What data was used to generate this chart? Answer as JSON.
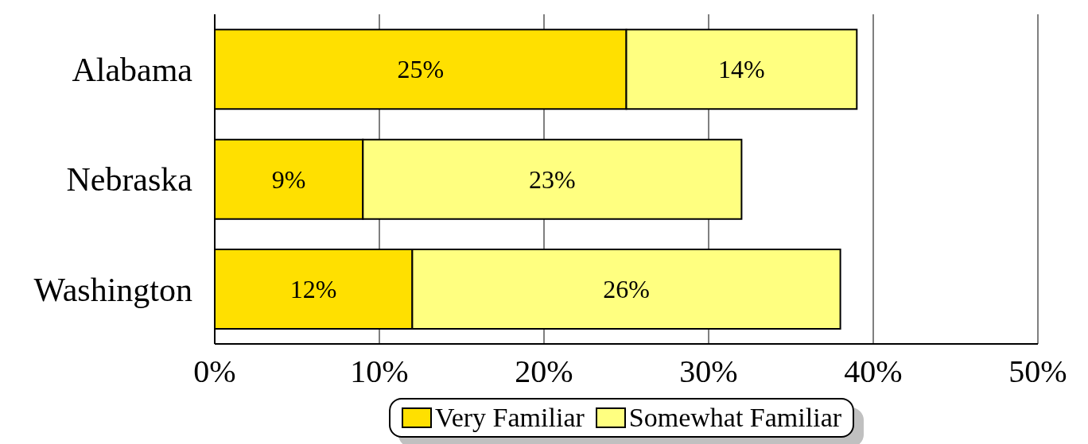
{
  "chart_data": {
    "type": "bar",
    "orientation": "horizontal",
    "stacked": true,
    "categories": [
      "Alabama",
      "Nebraska",
      "Washington"
    ],
    "series": [
      {
        "name": "Very Familiar",
        "color": "#ffe000",
        "values": [
          25,
          9,
          12
        ],
        "value_labels": [
          "25%",
          "9%",
          "12%"
        ]
      },
      {
        "name": "Somewhat Familiar",
        "color": "#ffff80",
        "values": [
          14,
          23,
          26
        ],
        "value_labels": [
          "14%",
          "23%",
          "26%"
        ]
      }
    ],
    "xlim": [
      0,
      50
    ],
    "xticks": [
      {
        "value": 0,
        "label": "0%"
      },
      {
        "value": 10,
        "label": "10%"
      },
      {
        "value": 20,
        "label": "20%"
      },
      {
        "value": 30,
        "label": "30%"
      },
      {
        "value": 40,
        "label": "40%"
      },
      {
        "value": 50,
        "label": "50%"
      }
    ],
    "grid": "x",
    "legend": "bottom"
  }
}
